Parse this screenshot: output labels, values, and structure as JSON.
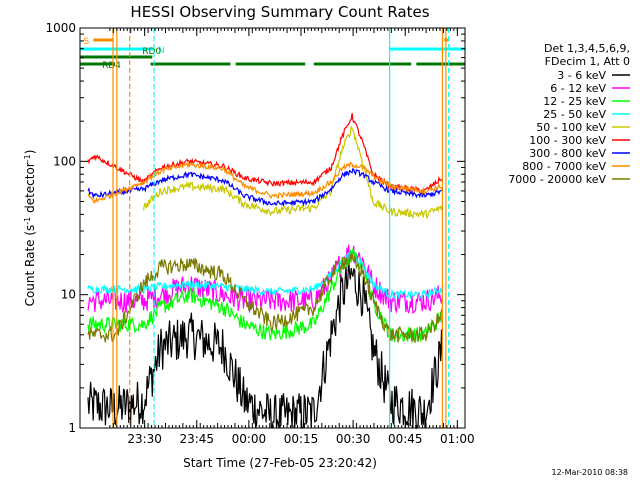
{
  "chart_data": {
    "type": "line",
    "title": "HESSI Observing Summary Count Rates",
    "xlabel": "Start Time (27-Feb-05 23:20:42)",
    "ylabel_parts": [
      "Count Rate (s",
      "-1",
      " detector",
      "-1",
      ")"
    ],
    "x_start_min": -9.3,
    "x_end_min": 101.5,
    "x_ticks": [
      {
        "min": 9.3,
        "label": "23:30"
      },
      {
        "min": 24.3,
        "label": "23:45"
      },
      {
        "min": 39.3,
        "label": "00:00"
      },
      {
        "min": 54.3,
        "label": "00:15"
      },
      {
        "min": 69.3,
        "label": "00:30"
      },
      {
        "min": 84.3,
        "label": "00:45"
      },
      {
        "min": 99.3,
        "label": "01:00"
      }
    ],
    "y_scale": "log",
    "ylim": [
      1,
      1000
    ],
    "y_ticks": [
      {
        "value": 1,
        "label": "1"
      },
      {
        "value": 10,
        "label": "10"
      },
      {
        "value": 100,
        "label": "100"
      },
      {
        "value": 1000,
        "label": "1000"
      }
    ],
    "legend_header": [
      "Det 1,3,4,5,6,9,",
      "FDecim 1, Att 0"
    ],
    "legend_placement": "right",
    "series": [
      {
        "name": "3 - 6 keV",
        "color": "#000000",
        "knots": [
          [
            -7,
            1.5
          ],
          [
            1,
            1.4
          ],
          [
            9,
            1.6
          ],
          [
            14,
            4
          ],
          [
            22,
            5
          ],
          [
            32,
            4
          ],
          [
            38,
            1.6
          ],
          [
            46,
            1.2
          ],
          [
            58,
            1.3
          ],
          [
            63,
            5
          ],
          [
            66,
            10
          ],
          [
            69,
            14
          ],
          [
            72,
            10
          ],
          [
            75,
            4
          ],
          [
            80,
            1.6
          ],
          [
            90,
            1.3
          ],
          [
            95,
            4
          ]
        ]
      },
      {
        "name": "6 - 12 keV",
        "color": "#ff00ff",
        "knots": [
          [
            -7,
            9
          ],
          [
            1,
            9
          ],
          [
            9,
            9
          ],
          [
            14,
            10
          ],
          [
            22,
            12
          ],
          [
            32,
            10
          ],
          [
            38,
            9
          ],
          [
            46,
            9
          ],
          [
            58,
            9
          ],
          [
            63,
            13
          ],
          [
            66,
            18
          ],
          [
            69,
            22
          ],
          [
            72,
            18
          ],
          [
            75,
            12
          ],
          [
            80,
            9
          ],
          [
            90,
            9
          ],
          [
            95,
            10
          ]
        ]
      },
      {
        "name": "12 - 25 keV",
        "color": "#00ff00",
        "knots": [
          [
            -7,
            6
          ],
          [
            1,
            6
          ],
          [
            9,
            6
          ],
          [
            14,
            8
          ],
          [
            22,
            10
          ],
          [
            32,
            8
          ],
          [
            38,
            6
          ],
          [
            46,
            5
          ],
          [
            58,
            6
          ],
          [
            63,
            11
          ],
          [
            66,
            16
          ],
          [
            69,
            20
          ],
          [
            72,
            16
          ],
          [
            75,
            9
          ],
          [
            80,
            5
          ],
          [
            90,
            5
          ],
          [
            95,
            7
          ]
        ]
      },
      {
        "name": "25 - 50 keV",
        "color": "#00ffff",
        "knots": [
          [
            -7,
            11
          ],
          [
            1,
            11
          ],
          [
            9,
            11
          ],
          [
            14,
            11.5
          ],
          [
            22,
            12
          ],
          [
            32,
            11.5
          ],
          [
            38,
            11
          ],
          [
            46,
            10.5
          ],
          [
            58,
            11
          ],
          [
            63,
            14
          ],
          [
            66,
            18
          ],
          [
            69,
            20
          ],
          [
            72,
            17
          ],
          [
            75,
            12
          ],
          [
            80,
            10
          ],
          [
            90,
            10
          ],
          [
            95,
            11
          ]
        ]
      },
      {
        "name": "50 - 100 keV",
        "color": "#c8c800",
        "knots": [
          [
            9,
            45
          ],
          [
            14,
            60
          ],
          [
            22,
            65
          ],
          [
            32,
            62
          ],
          [
            38,
            48
          ],
          [
            46,
            42
          ],
          [
            58,
            45
          ],
          [
            63,
            60
          ],
          [
            66,
            120
          ],
          [
            69,
            180
          ],
          [
            72,
            100
          ],
          [
            75,
            50
          ],
          [
            80,
            42
          ],
          [
            90,
            40
          ],
          [
            95,
            45
          ]
        ]
      },
      {
        "name": "100 - 300 keV",
        "color": "#ff0000",
        "knots": [
          [
            -7,
            100
          ],
          [
            -5,
            110
          ],
          [
            9,
            70
          ],
          [
            14,
            90
          ],
          [
            22,
            100
          ],
          [
            32,
            92
          ],
          [
            38,
            75
          ],
          [
            46,
            68
          ],
          [
            58,
            70
          ],
          [
            63,
            90
          ],
          [
            66,
            150
          ],
          [
            69,
            220
          ],
          [
            72,
            140
          ],
          [
            75,
            80
          ],
          [
            80,
            65
          ],
          [
            90,
            60
          ],
          [
            95,
            75
          ]
        ]
      },
      {
        "name": "300 - 800 keV",
        "color": "#0000ff",
        "knots": [
          [
            -7,
            60
          ],
          [
            -5,
            55
          ],
          [
            9,
            62
          ],
          [
            14,
            72
          ],
          [
            22,
            80
          ],
          [
            32,
            72
          ],
          [
            38,
            55
          ],
          [
            46,
            48
          ],
          [
            58,
            50
          ],
          [
            63,
            62
          ],
          [
            66,
            78
          ],
          [
            69,
            85
          ],
          [
            72,
            80
          ],
          [
            75,
            70
          ],
          [
            80,
            60
          ],
          [
            90,
            55
          ],
          [
            95,
            60
          ]
        ]
      },
      {
        "name": "800 - 7000 keV",
        "color": "#ff8c00",
        "knots": [
          [
            -7,
            55
          ],
          [
            -5,
            50
          ],
          [
            9,
            70
          ],
          [
            14,
            85
          ],
          [
            22,
            95
          ],
          [
            32,
            88
          ],
          [
            38,
            65
          ],
          [
            46,
            55
          ],
          [
            58,
            58
          ],
          [
            63,
            70
          ],
          [
            66,
            88
          ],
          [
            69,
            95
          ],
          [
            72,
            90
          ],
          [
            75,
            78
          ],
          [
            80,
            65
          ],
          [
            90,
            60
          ],
          [
            95,
            65
          ]
        ]
      },
      {
        "name": "7000 - 20000 keV",
        "color": "#7a7a00",
        "knots": [
          [
            -7,
            5
          ],
          [
            1,
            5
          ],
          [
            9,
            12
          ],
          [
            14,
            16
          ],
          [
            22,
            17
          ],
          [
            32,
            14
          ],
          [
            38,
            9
          ],
          [
            46,
            6
          ],
          [
            58,
            8
          ],
          [
            63,
            14
          ],
          [
            66,
            18
          ],
          [
            69,
            18
          ],
          [
            72,
            15
          ],
          [
            75,
            9
          ],
          [
            80,
            5
          ],
          [
            90,
            5
          ],
          [
            95,
            7
          ]
        ]
      }
    ],
    "vertical_lines": [
      {
        "x_min": 0.2,
        "color": "#ff8c00",
        "style": "solid"
      },
      {
        "x_min": 1.3,
        "color": "#ff8c00",
        "style": "solid"
      },
      {
        "x_min": 5.0,
        "color": "#ff8c00",
        "style": "dashed"
      },
      {
        "x_min": 12.0,
        "color": "#00ffff",
        "style": "dashed"
      },
      {
        "x_min": 79.8,
        "color": "#00ffff",
        "style": "solid"
      },
      {
        "x_min": 95.0,
        "color": "#ff8c00",
        "style": "solid"
      },
      {
        "x_min": 96.0,
        "color": "#ff8c00",
        "style": "solid"
      },
      {
        "x_min": 96.8,
        "color": "#00ffff",
        "style": "dashed"
      }
    ],
    "flag_bars": [
      {
        "label": "S",
        "color": "#ff8c00",
        "row": 0,
        "segments": [
          [
            -5.5,
            0.4
          ],
          [
            95.5,
            96.8
          ]
        ]
      },
      {
        "label": "N",
        "color": "#00ffff",
        "row": 1,
        "segments": [
          [
            -9.3,
            12.0
          ],
          [
            79.6,
            101.5
          ]
        ]
      },
      {
        "label": "RD0",
        "color": "#007700",
        "row": 2,
        "segments": [
          [
            -9.3,
            11.5
          ]
        ]
      },
      {
        "label": "RD4",
        "color": "#007700",
        "row": 3,
        "segments": [
          [
            -9.3,
            0.8
          ],
          [
            11.0,
            34.0
          ],
          [
            35.5,
            55.5
          ],
          [
            58.0,
            86.0
          ],
          [
            87.5,
            101.5
          ]
        ]
      }
    ]
  },
  "footer_timestamp": "12-Mar-2010 08:38"
}
